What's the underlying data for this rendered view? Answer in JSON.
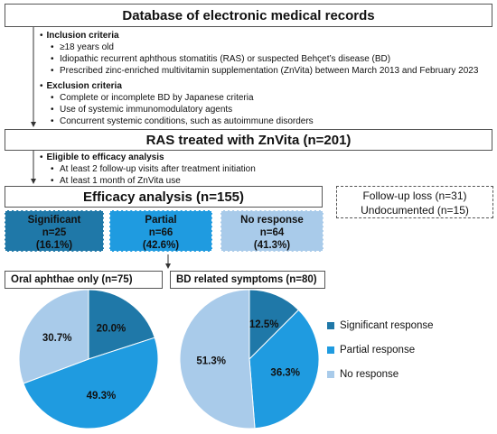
{
  "title": "Database of electronic medical records",
  "inclusion": {
    "header": "Inclusion criteria",
    "items": [
      "≥18 years old",
      "Idiopathic recurrent aphthous stomatitis (RAS) or suspected Behçet’s disease (BD)",
      "Prescribed zinc-enriched multivitamin supplementation (ZnVita) between March 2013 and February 2023"
    ]
  },
  "exclusion": {
    "header": "Exclusion criteria",
    "items": [
      "Complete or incomplete BD by Japanese criteria",
      "Use of systemic immunomodulatory agents",
      "Concurrent systemic conditions, such as autoimmune disorders"
    ]
  },
  "treated": "RAS treated with ZnVita (n=201)",
  "eligibility": {
    "header": "Eligible to efficacy analysis",
    "items": [
      "At least 2 follow-up visits after treatment initiation",
      "At least 1 month of ZnVita use"
    ]
  },
  "efficacy": "Efficacy analysis (n=155)",
  "excluded": {
    "line1": "Follow-up loss (n=31)",
    "line2": "Undocumented (n=15)"
  },
  "responses": [
    {
      "label": "Significant",
      "count": "n=25",
      "pct": "(16.1%)"
    },
    {
      "label": "Partial",
      "count": "n=66",
      "pct": "(42.6%)"
    },
    {
      "label": "No response",
      "count": "n=64",
      "pct": "(41.3%)"
    }
  ],
  "colors": {
    "significant": "#1f78a8",
    "partial": "#1f9be0",
    "none": "#a9cbea",
    "border": "#555555"
  },
  "chart_data": [
    {
      "type": "pie",
      "title": "Oral aphthae only (n=75)",
      "categories": [
        "Significant response",
        "Partial response",
        "No response"
      ],
      "values": [
        20.0,
        49.3,
        30.7
      ],
      "labels": [
        "20.0%",
        "49.3%",
        "30.7%"
      ]
    },
    {
      "type": "pie",
      "title": "BD related symptoms (n=80)",
      "categories": [
        "Significant response",
        "Partial response",
        "No response"
      ],
      "values": [
        12.5,
        36.3,
        51.3
      ],
      "labels": [
        "12.5%",
        "36.3%",
        "51.3%"
      ]
    }
  ],
  "legend": [
    "Significant response",
    "Partial response",
    "No response"
  ]
}
